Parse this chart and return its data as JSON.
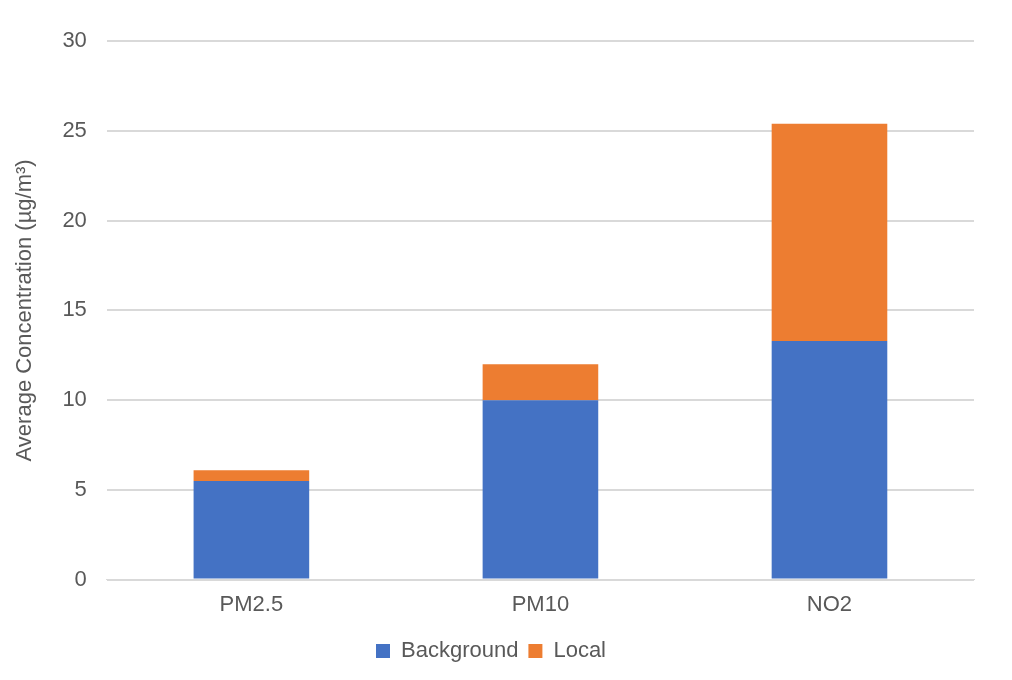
{
  "chart_data": {
    "type": "bar",
    "ylabel": "Average Concentration (µg/m³)",
    "categories": [
      "PM2.5",
      "PM10",
      "NO2"
    ],
    "series": [
      {
        "name": "Background",
        "color": "#4472c4",
        "values": [
          5.5,
          10.0,
          13.3
        ]
      },
      {
        "name": "Local",
        "color": "#ed7d31",
        "values": [
          0.6,
          2.0,
          12.1
        ]
      }
    ],
    "stacked": true,
    "ylim": [
      0,
      30
    ],
    "yticks": [
      0,
      5,
      10,
      15,
      20,
      25,
      30
    ],
    "grid": "y",
    "legend": "bottom"
  }
}
